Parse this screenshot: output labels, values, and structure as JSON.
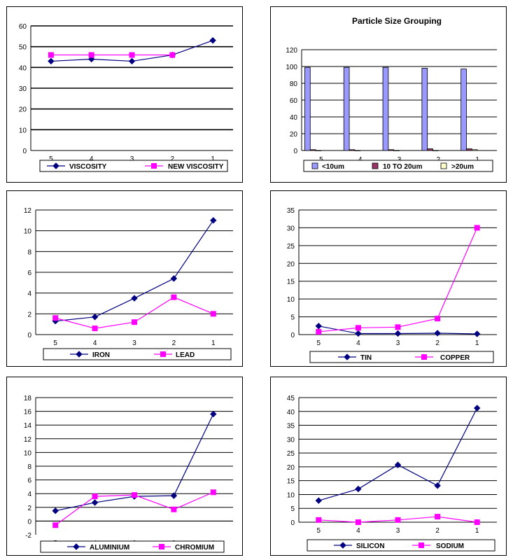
{
  "chart_data": [
    {
      "type": "line",
      "title": "",
      "categories": [
        "5",
        "4",
        "3",
        "2",
        "1"
      ],
      "ylim": [
        0,
        60
      ],
      "ystep": 10,
      "grid": true,
      "legend": "bottom",
      "series": [
        {
          "name": "VISCOSITY",
          "color": "#000080",
          "marker": "diamond",
          "values": [
            43,
            44,
            43,
            46,
            53
          ]
        },
        {
          "name": "NEW VISCOSITY",
          "color": "#ff00ff",
          "marker": "square",
          "values": [
            46,
            46,
            46,
            46,
            null
          ]
        }
      ]
    },
    {
      "type": "bar",
      "title": "Particle Size Grouping",
      "categories": [
        "5",
        "4",
        "3",
        "2",
        "1"
      ],
      "ylim": [
        0,
        120
      ],
      "ystep": 20,
      "grid": true,
      "legend": "bottom",
      "series": [
        {
          "name": "<10um",
          "color": "#9999ff",
          "values": [
            99,
            99,
            99,
            98,
            97
          ]
        },
        {
          "name": "10 TO 20um",
          "color": "#993366",
          "values": [
            1,
            1,
            1,
            2,
            2
          ]
        },
        {
          "name": ">20um",
          "color": "#ffffcc",
          "values": [
            0,
            0,
            0,
            0,
            1
          ]
        }
      ]
    },
    {
      "type": "line",
      "title": "",
      "categories": [
        "5",
        "4",
        "3",
        "2",
        "1"
      ],
      "ylim": [
        0,
        12
      ],
      "ystep": 2,
      "grid": true,
      "legend": "bottom",
      "series": [
        {
          "name": "IRON",
          "color": "#000080",
          "marker": "diamond",
          "values": [
            1.3,
            1.7,
            3.5,
            5.4,
            11.0
          ]
        },
        {
          "name": "LEAD",
          "color": "#ff00ff",
          "marker": "square",
          "values": [
            1.6,
            0.6,
            1.2,
            3.6,
            2.0
          ]
        }
      ]
    },
    {
      "type": "line",
      "title": "",
      "categories": [
        "5",
        "4",
        "3",
        "2",
        "1"
      ],
      "ylim": [
        0,
        35
      ],
      "ystep": 5,
      "grid": true,
      "legend": "bottom",
      "series": [
        {
          "name": "TIN",
          "color": "#000080",
          "marker": "diamond",
          "values": [
            2.4,
            0.3,
            0.3,
            0.4,
            0.2
          ]
        },
        {
          "name": "COPPER",
          "color": "#ff00ff",
          "marker": "square",
          "values": [
            0.8,
            1.9,
            2.1,
            4.5,
            30.0
          ]
        }
      ]
    },
    {
      "type": "line",
      "title": "",
      "categories": [
        "5",
        "4",
        "3",
        "2",
        "1"
      ],
      "ylim": [
        -2,
        18
      ],
      "ystep": 2,
      "grid": true,
      "legend": "bottom",
      "series": [
        {
          "name": "ALUMINIUM",
          "color": "#000080",
          "marker": "diamond",
          "values": [
            1.5,
            2.7,
            3.6,
            3.7,
            15.6
          ]
        },
        {
          "name": "CHROMIUM",
          "color": "#ff00ff",
          "marker": "square",
          "values": [
            -0.6,
            3.6,
            3.8,
            1.7,
            4.2
          ]
        }
      ]
    },
    {
      "type": "line",
      "title": "",
      "categories": [
        "5",
        "4",
        "3",
        "2",
        "1"
      ],
      "ylim": [
        0,
        45
      ],
      "ystep": 5,
      "grid": true,
      "legend": "bottom",
      "series": [
        {
          "name": "SILICON",
          "color": "#000080",
          "marker": "diamond",
          "values": [
            7.8,
            12.0,
            20.7,
            13.2,
            41.2
          ]
        },
        {
          "name": "SODIUM",
          "color": "#ff00ff",
          "marker": "square",
          "values": [
            0.8,
            0.0,
            0.8,
            2.0,
            0.0
          ]
        }
      ]
    }
  ]
}
